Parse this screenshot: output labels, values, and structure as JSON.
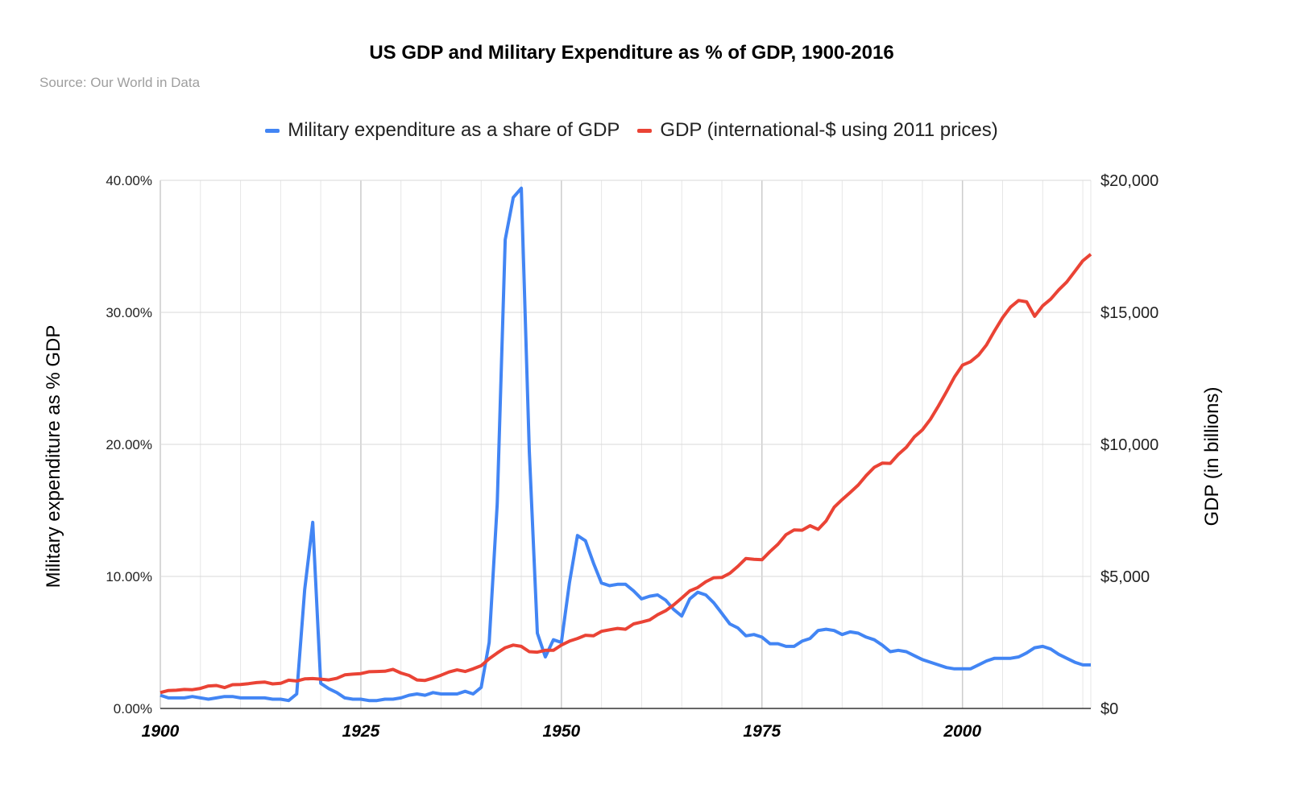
{
  "chart_data": {
    "type": "line",
    "title": "US GDP and Military Expenditure as % of GDP, 1900-2016",
    "subtitle": "Source: Our World in Data",
    "ylabel": "Military expenditure as % GDP",
    "y2label": "GDP (in billions)",
    "xlabel": "",
    "xlim": [
      1900,
      2016
    ],
    "ylim": [
      0,
      40
    ],
    "y2lim": [
      0,
      20000
    ],
    "x_ticks": [
      "1900",
      "1925",
      "1950",
      "1975",
      "2000"
    ],
    "y_ticks": [
      "0.00%",
      "10.00%",
      "20.00%",
      "30.00%",
      "40.00%"
    ],
    "y2_ticks": [
      "$0",
      "$5,000",
      "$10,000",
      "$15,000",
      "$20,000"
    ],
    "grid": true,
    "legend_position": "top",
    "x_start": 1900,
    "series": [
      {
        "name": "Military expenditure as a share of GDP",
        "color": "#4285f4",
        "axis": "left",
        "values": [
          1.0,
          0.8,
          0.8,
          0.8,
          0.9,
          0.8,
          0.7,
          0.8,
          0.9,
          0.9,
          0.8,
          0.8,
          0.8,
          0.8,
          0.7,
          0.7,
          0.6,
          1.1,
          9.0,
          14.1,
          1.9,
          1.5,
          1.2,
          0.8,
          0.7,
          0.7,
          0.6,
          0.6,
          0.7,
          0.7,
          0.8,
          1.0,
          1.1,
          1.0,
          1.2,
          1.1,
          1.1,
          1.1,
          1.3,
          1.1,
          1.6,
          5.0,
          15.5,
          35.5,
          38.7,
          39.4,
          19.5,
          5.7,
          3.9,
          5.2,
          5.0,
          9.5,
          13.1,
          12.7,
          11.0,
          9.5,
          9.3,
          9.4,
          9.4,
          8.9,
          8.3,
          8.5,
          8.6,
          8.2,
          7.5,
          7.0,
          8.3,
          8.8,
          8.6,
          8.0,
          7.2,
          6.4,
          6.1,
          5.5,
          5.6,
          5.4,
          4.9,
          4.9,
          4.7,
          4.7,
          5.1,
          5.3,
          5.9,
          6.0,
          5.9,
          5.6,
          5.8,
          5.7,
          5.4,
          5.2,
          4.8,
          4.3,
          4.4,
          4.3,
          4.0,
          3.7,
          3.5,
          3.3,
          3.1,
          3.0,
          3.0,
          3.0,
          3.3,
          3.6,
          3.8,
          3.8,
          3.8,
          3.9,
          4.2,
          4.6,
          4.7,
          4.5,
          4.1,
          3.8,
          3.5,
          3.3,
          3.3
        ]
      },
      {
        "name": "GDP (international-$ using 2011 prices)",
        "color": "#ea4335",
        "axis": "right",
        "values": [
          600,
          680,
          690,
          720,
          710,
          760,
          850,
          870,
          790,
          900,
          910,
          940,
          980,
          1000,
          930,
          950,
          1070,
          1040,
          1120,
          1130,
          1110,
          1080,
          1140,
          1270,
          1300,
          1320,
          1390,
          1400,
          1410,
          1480,
          1340,
          1250,
          1080,
          1060,
          1150,
          1260,
          1380,
          1460,
          1400,
          1500,
          1620,
          1880,
          2100,
          2300,
          2400,
          2350,
          2150,
          2130,
          2200,
          2200,
          2400,
          2550,
          2650,
          2770,
          2750,
          2920,
          2980,
          3030,
          3000,
          3200,
          3270,
          3350,
          3550,
          3700,
          3920,
          4180,
          4450,
          4580,
          4800,
          4950,
          4960,
          5120,
          5380,
          5680,
          5650,
          5630,
          5940,
          6220,
          6580,
          6760,
          6750,
          6920,
          6780,
          7100,
          7620,
          7910,
          8180,
          8460,
          8820,
          9130,
          9290,
          9280,
          9620,
          9890,
          10280,
          10550,
          10950,
          11450,
          11990,
          12550,
          13000,
          13130,
          13380,
          13770,
          14300,
          14800,
          15200,
          15450,
          15400,
          14850,
          15250,
          15500,
          15850,
          16150,
          16550,
          16950,
          17200
        ]
      }
    ]
  }
}
